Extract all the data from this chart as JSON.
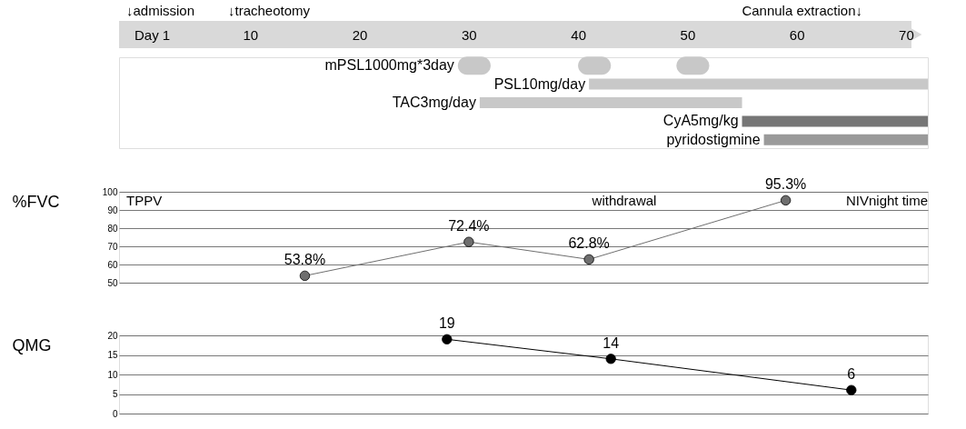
{
  "chart_data": [
    {
      "type": "bar",
      "orientation": "horizontal",
      "categories": [
        "mPSL1000mg*3day",
        "PSL10mg/day",
        "TAC3mg/day",
        "CyA5mg/kg",
        "pyridostigmine"
      ],
      "xlim": [
        -2,
        72
      ],
      "xticks": [
        {
          "value": 1,
          "label": "Day 1"
        },
        10,
        20,
        30,
        40,
        50,
        60,
        70
      ],
      "tick_labels": "x",
      "series": [
        {
          "base": [
            29,
            41,
            31,
            55,
            57
          ],
          "values": [
            3,
            31,
            24,
            17,
            15
          ],
          "colors": [
            "#c8c8c8",
            "#c8c8c8",
            "#c8c8c8",
            "#767676",
            "#9a9a9a"
          ]
        },
        {
          "base": [
            40,
            null,
            null,
            null,
            null
          ],
          "values": [
            3,
            null,
            null,
            null,
            null
          ],
          "color": "#c8c8c8"
        },
        {
          "base": [
            49,
            null,
            null,
            null,
            null
          ],
          "values": [
            3,
            null,
            null,
            null,
            null
          ],
          "color": "#c8c8c8"
        }
      ],
      "annotations": [
        "↓admission",
        "↓tracheotomy",
        "Cannula extraction↓"
      ]
    },
    {
      "type": "line",
      "ylabel": "%FVC",
      "x": [
        15,
        30,
        41,
        59
      ],
      "xlim": [
        -2,
        72
      ],
      "ylim": [
        50,
        100
      ],
      "yticks": [
        50,
        60,
        70,
        80,
        90,
        100
      ],
      "grid": "y",
      "tick_labels": "y",
      "marker": "circle",
      "line_style": "solid",
      "series": [
        {
          "color": "#6e6e6e",
          "values": [
            53.8,
            72.4,
            62.8,
            95.3
          ],
          "value_labels": [
            "53.8%",
            "72.4%",
            "62.8%",
            "95.3%"
          ]
        }
      ],
      "annotations": [
        "TPPV",
        "withdrawal",
        "NIVnight time"
      ]
    },
    {
      "type": "line",
      "ylabel": "QMG",
      "x": [
        28,
        43,
        65
      ],
      "xlim": [
        -2,
        72
      ],
      "ylim": [
        0,
        20
      ],
      "yticks": [
        0,
        5,
        10,
        15,
        20
      ],
      "grid": "y",
      "tick_labels": "y",
      "marker": "circle",
      "line_style": "solid",
      "data_labels": true,
      "series": [
        {
          "color": "#000000",
          "values": [
            19,
            14,
            6
          ]
        }
      ]
    }
  ]
}
